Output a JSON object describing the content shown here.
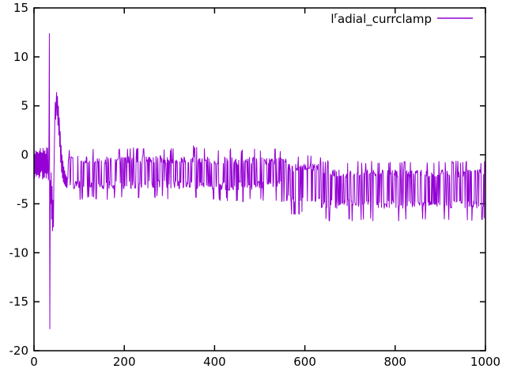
{
  "window": {
    "background": "#ffffff",
    "border_color": "#000000",
    "text_color": "#000000"
  },
  "chart_data": {
    "type": "line",
    "title": "",
    "legend": {
      "base": "l",
      "sup": "r",
      "rest": "adial_currclamp",
      "display": "lradial_currclamp",
      "position": "top-right"
    },
    "series_color": "#9400d3",
    "axes": {
      "xlim": [
        0,
        1000
      ],
      "ylim": [
        -20,
        15
      ],
      "xticks": [
        0,
        200,
        400,
        600,
        800,
        1000
      ],
      "yticks": [
        -20,
        -15,
        -10,
        -5,
        0,
        5,
        10,
        15
      ],
      "xlabel": "",
      "ylabel": "",
      "grid": false
    },
    "signal": {
      "n_points": 1000,
      "noise_seed": 1337,
      "description": "Noisy clamp-current trace: initial band ~[+0.9,-2.6], large transient spike +12.4 then -17.8 near x=35, ringing to +6.4/-7.8 until x~74, noise band ~[-3.5,-0.1] until x~558 with small positive spikes near x~350-395, band steps down to ~[-4.9,-0.9] for x~559-635, then ~[-5.5,-1.5] with dips to -6.6 until x=1000",
      "initial_band": {
        "from": 0,
        "to": 31,
        "top": 0.9,
        "bottom": -2.6
      },
      "transient_keyframes": [
        [
          32,
          -2.6
        ],
        [
          33,
          0.8
        ],
        [
          34,
          12.4
        ],
        [
          35,
          -17.8
        ],
        [
          36,
          -2.6
        ],
        [
          37,
          -5.0
        ],
        [
          38,
          -1.8
        ],
        [
          39,
          -6.6
        ],
        [
          40,
          -3.2
        ],
        [
          41,
          -7.8
        ],
        [
          42,
          -4.6
        ],
        [
          43,
          -7.4
        ],
        [
          44,
          -2.5
        ],
        [
          45,
          0.6
        ],
        [
          46,
          3.2
        ],
        [
          47,
          5.4
        ],
        [
          48,
          3.6
        ],
        [
          49,
          5.2
        ],
        [
          50,
          6.4
        ],
        [
          51,
          4.0
        ],
        [
          52,
          6.0
        ],
        [
          53,
          3.0
        ],
        [
          54,
          5.0
        ],
        [
          55,
          2.0
        ],
        [
          56,
          3.8
        ],
        [
          57,
          0.8
        ],
        [
          58,
          2.4
        ],
        [
          59,
          -0.8
        ],
        [
          60,
          1.0
        ],
        [
          61,
          -1.8
        ],
        [
          62,
          0.0
        ],
        [
          63,
          -2.4
        ],
        [
          64,
          -0.6
        ],
        [
          65,
          -2.8
        ],
        [
          66,
          -1.2
        ],
        [
          67,
          -3.0
        ],
        [
          68,
          -1.6
        ],
        [
          69,
          -3.2
        ],
        [
          70,
          -2.0
        ],
        [
          71,
          -3.3
        ],
        [
          72,
          -2.2
        ],
        [
          73,
          -3.4
        ],
        [
          74,
          -2.4
        ]
      ],
      "noise_segments": [
        {
          "from": 75,
          "to": 344,
          "top": -0.1,
          "bottom": -3.5,
          "up_spike": 0.6,
          "up_prob": 0.05,
          "down_spike": -4.4,
          "down_prob": 0.06
        },
        {
          "from": 345,
          "to": 395,
          "top": -0.1,
          "bottom": -3.5,
          "up_spike": 0.8,
          "up_prob": 0.12,
          "down_spike": -4.4,
          "down_prob": 0.06
        },
        {
          "from": 396,
          "to": 558,
          "top": -0.2,
          "bottom": -3.6,
          "up_spike": 0.5,
          "up_prob": 0.04,
          "down_spike": -4.6,
          "down_prob": 0.07
        },
        {
          "from": 559,
          "to": 635,
          "top": -0.9,
          "bottom": -4.9,
          "up_spike": -0.2,
          "up_prob": 0.05,
          "down_spike": -6.0,
          "down_prob": 0.05
        },
        {
          "from": 636,
          "to": 999,
          "top": -1.5,
          "bottom": -5.5,
          "up_spike": -0.7,
          "up_prob": 0.09,
          "down_spike": -6.6,
          "down_prob": 0.035
        }
      ]
    }
  }
}
